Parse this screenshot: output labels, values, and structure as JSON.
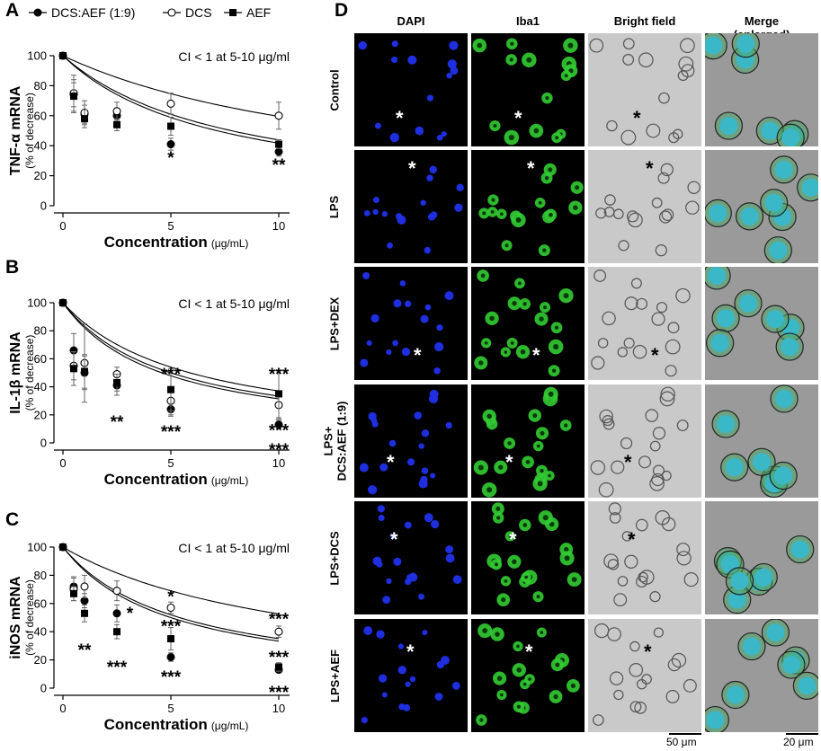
{
  "panel_letters": {
    "A": "A",
    "B": "B",
    "C": "C",
    "D": "D"
  },
  "legend": {
    "dcs_aef": "DCS:AEF (1:9)",
    "dcs": "DCS",
    "aef": "AEF"
  },
  "colors": {
    "microscopy_bg": "#000000",
    "dapi": "#1f2fe0",
    "iba1": "#33cc33",
    "bright_field": "#c9c9c9",
    "merge_cell": "#3ab8c8"
  },
  "chart_data": [
    {
      "id": "A",
      "type": "scatter",
      "ylabel": "TNF-α mRNA",
      "ylabel_sub": "(% of decrease)",
      "xlabel": "Concentration",
      "xlabel_unit": "(μg/mL)",
      "annotation": "CI < 1 at 5-10 μg/ml",
      "xlim": [
        0,
        10.5
      ],
      "ylim": [
        0,
        100
      ],
      "xticks": [
        0,
        5,
        10
      ],
      "yticks": [
        0,
        20,
        40,
        60,
        80,
        100
      ],
      "x": [
        0,
        0.5,
        1,
        2.5,
        5,
        10
      ],
      "series": [
        {
          "name": "DCS:AEF (1:9)",
          "marker": "filled-circle",
          "fit_k": 0.14,
          "values": [
            100,
            74,
            61,
            60,
            41,
            36
          ],
          "errors": [
            0,
            8,
            6,
            5,
            4,
            3
          ]
        },
        {
          "name": "DCS",
          "marker": "open-circle",
          "fit_k": 0.068,
          "values": [
            100,
            75,
            62,
            63,
            68,
            60
          ],
          "errors": [
            0,
            12,
            8,
            6,
            7,
            9
          ]
        },
        {
          "name": "AEF",
          "marker": "filled-square",
          "fit_k": 0.128,
          "values": [
            100,
            73,
            58,
            54,
            53,
            41
          ],
          "errors": [
            0,
            11,
            6,
            4,
            6,
            3
          ]
        }
      ],
      "sig_labels": [
        {
          "x": 5,
          "y": 33,
          "text": "*"
        },
        {
          "x": 10,
          "y": 28,
          "text": "**"
        }
      ]
    },
    {
      "id": "B",
      "type": "scatter",
      "ylabel": "IL-1β mRNA",
      "ylabel_sub": "(% of decrease)",
      "xlabel": "Concentration",
      "xlabel_unit": "(μg/mL)",
      "annotation": "CI < 1 at 5-10 μg/ml",
      "xlim": [
        0,
        10.5
      ],
      "ylim": [
        0,
        100
      ],
      "xticks": [
        0,
        5,
        10
      ],
      "yticks": [
        0,
        20,
        40,
        60,
        80,
        100
      ],
      "x": [
        0,
        0.5,
        1,
        2.5,
        5,
        10
      ],
      "series": [
        {
          "name": "DCS:AEF (1:9)",
          "marker": "filled-circle",
          "fit_k": 0.218,
          "values": [
            100,
            66,
            50,
            41,
            24,
            13
          ],
          "errors": [
            0,
            12,
            12,
            7,
            5,
            3
          ]
        },
        {
          "name": "DCS",
          "marker": "open-circle",
          "fit_k": 0.17,
          "values": [
            100,
            55,
            57,
            49,
            30,
            27
          ],
          "errors": [
            0,
            10,
            28,
            5,
            10,
            10
          ]
        },
        {
          "name": "AEF",
          "marker": "filled-square",
          "fit_k": 0.2,
          "values": [
            100,
            53,
            51,
            43,
            38,
            35
          ],
          "errors": [
            0,
            12,
            12,
            6,
            15,
            17
          ]
        }
      ],
      "sig_labels": [
        {
          "x": 2.5,
          "y": 16,
          "text": "**"
        },
        {
          "x": 5,
          "y": 50,
          "text": "***"
        },
        {
          "x": 5,
          "y": 9,
          "text": "***"
        },
        {
          "x": 10,
          "y": 50,
          "text": "***"
        },
        {
          "x": 10,
          "y": 10,
          "text": "***"
        },
        {
          "x": 10,
          "y": -4,
          "text": "***"
        }
      ]
    },
    {
      "id": "C",
      "type": "scatter",
      "ylabel": "iNOS mRNA",
      "ylabel_sub": "(% of decrease)",
      "xlabel": "Concentration",
      "xlabel_unit": "(μg/mL)",
      "annotation": "CI < 1 at 5-10 μg/ml",
      "xlim": [
        0,
        10.5
      ],
      "ylim": [
        0,
        100
      ],
      "xticks": [
        0,
        5,
        10
      ],
      "yticks": [
        0,
        20,
        40,
        60,
        80,
        100
      ],
      "x": [
        0,
        0.5,
        1,
        2.5,
        5,
        10
      ],
      "series": [
        {
          "name": "DCS:AEF (1:9)",
          "marker": "filled-circle",
          "fit_k": 0.2,
          "values": [
            100,
            72,
            62,
            53,
            22,
            13
          ],
          "errors": [
            0,
            7,
            5,
            6,
            3,
            2
          ]
        },
        {
          "name": "DCS",
          "marker": "open-circle",
          "fit_k": 0.09,
          "values": [
            100,
            70,
            72,
            69,
            57,
            40
          ],
          "errors": [
            0,
            8,
            8,
            7,
            4,
            4
          ]
        },
        {
          "name": "AEF",
          "marker": "filled-square",
          "fit_k": 0.185,
          "values": [
            100,
            67,
            53,
            40,
            35,
            15
          ],
          "errors": [
            0,
            5,
            6,
            5,
            8,
            3
          ]
        }
      ],
      "sig_labels": [
        {
          "x": 1,
          "y": 28,
          "text": "**"
        },
        {
          "x": 3.1,
          "y": 54,
          "text": "*"
        },
        {
          "x": 2.5,
          "y": 16,
          "text": "***"
        },
        {
          "x": 5,
          "y": 66,
          "text": "*"
        },
        {
          "x": 5,
          "y": 45,
          "text": "***"
        },
        {
          "x": 5,
          "y": 9,
          "text": "***"
        },
        {
          "x": 10,
          "y": 50,
          "text": "***"
        },
        {
          "x": 10,
          "y": 23,
          "text": "***"
        },
        {
          "x": 10,
          "y": -2,
          "text": "***"
        }
      ]
    }
  ],
  "microscopy": {
    "columns": [
      "DAPI",
      "Iba1",
      "Bright field",
      "Merge\n(enlarged)"
    ],
    "rows": [
      "Control",
      "LPS",
      "LPS+DEX",
      "LPS+\nDCS:AEF (1:9)",
      "LPS+DCS",
      "LPS+AEF"
    ],
    "marker_symbol": "*",
    "scale_bars": [
      "50 μm",
      "20 μm"
    ]
  }
}
